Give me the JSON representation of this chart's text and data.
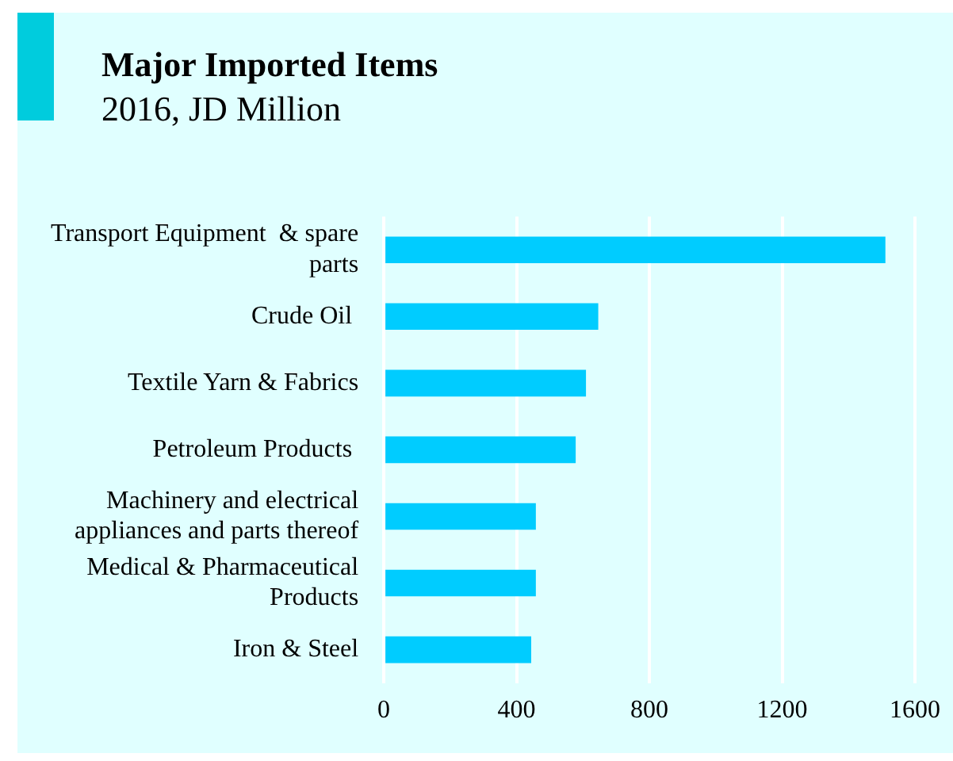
{
  "chart_data": {
    "type": "bar",
    "orientation": "horizontal",
    "title": "Major Imported Items",
    "subtitle": "2016, JD Million",
    "categories": [
      "Transport Equipment  & spare parts",
      "Crude Oil ",
      "Textile Yarn & Fabrics",
      "Petroleum Products ",
      "Machinery and electrical appliances and parts thereof",
      "Medical & Pharmaceutical Products",
      "Iron & Steel"
    ],
    "values": [
      1511,
      646,
      609,
      578,
      458,
      458,
      444
    ],
    "color": "#00ccff",
    "xlim": [
      0,
      1600
    ],
    "xticks": [
      0,
      400,
      800,
      1200,
      1600
    ],
    "grid": "x"
  }
}
